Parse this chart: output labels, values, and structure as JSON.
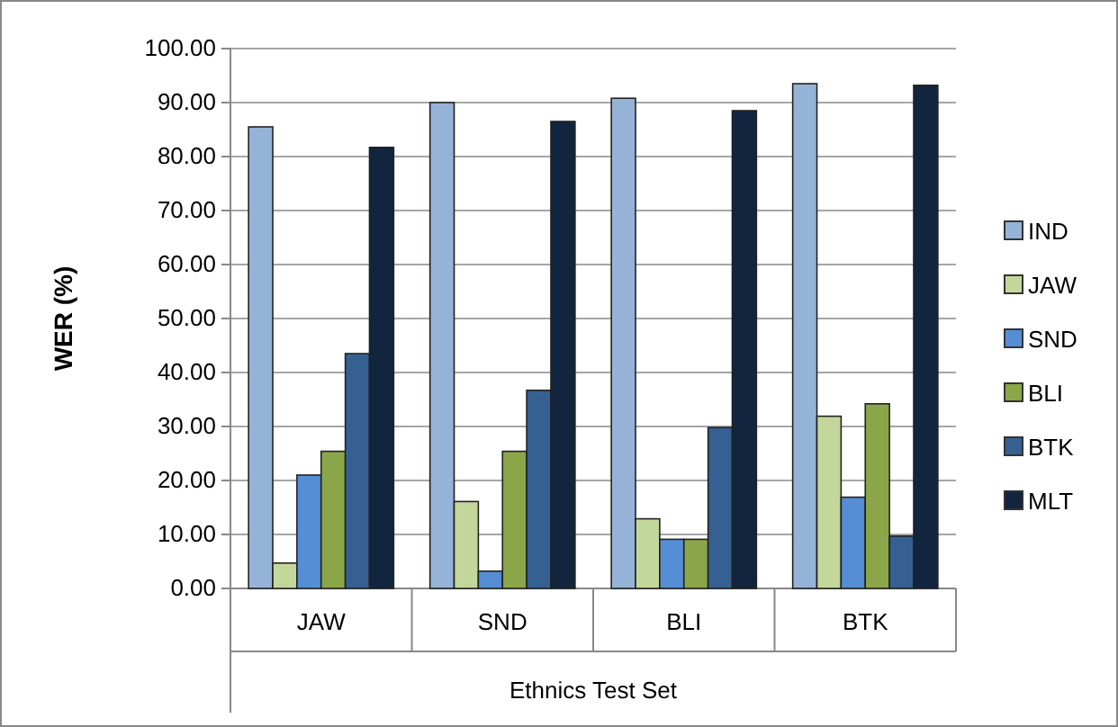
{
  "chart_data": {
    "type": "bar",
    "xlabel": "Ethnics Test Set",
    "ylabel": "WER (%)",
    "categories": [
      "JAW",
      "SND",
      "BLI",
      "BTK"
    ],
    "series": [
      {
        "name": "IND",
        "color": "#95b3d7",
        "values": [
          85.5,
          90.0,
          90.8,
          93.5
        ]
      },
      {
        "name": "JAW",
        "color": "#c4d79b",
        "values": [
          4.7,
          16.1,
          12.9,
          31.9
        ]
      },
      {
        "name": "SND",
        "color": "#558ed5",
        "values": [
          21.0,
          3.2,
          9.1,
          16.9
        ]
      },
      {
        "name": "BLI",
        "color": "#8aa648",
        "values": [
          25.4,
          25.4,
          9.1,
          34.2
        ]
      },
      {
        "name": "BTK",
        "color": "#366092",
        "values": [
          43.5,
          36.7,
          29.8,
          9.7
        ]
      },
      {
        "name": "MLT",
        "color": "#12253f",
        "values": [
          81.7,
          86.5,
          88.5,
          93.2
        ]
      }
    ],
    "ylim": [
      0,
      100
    ],
    "yticks": [
      {
        "value": 0,
        "label": "0.00"
      },
      {
        "value": 10,
        "label": "10.00"
      },
      {
        "value": 20,
        "label": "20.00"
      },
      {
        "value": 30,
        "label": "30.00"
      },
      {
        "value": 40,
        "label": "40.00"
      },
      {
        "value": 50,
        "label": "50.00"
      },
      {
        "value": 60,
        "label": "60.00"
      },
      {
        "value": 70,
        "label": "70.00"
      },
      {
        "value": 80,
        "label": "80.00"
      },
      {
        "value": 90,
        "label": "90.00"
      },
      {
        "value": 100,
        "label": "100.00"
      }
    ],
    "grid": "y",
    "legend": "right"
  }
}
